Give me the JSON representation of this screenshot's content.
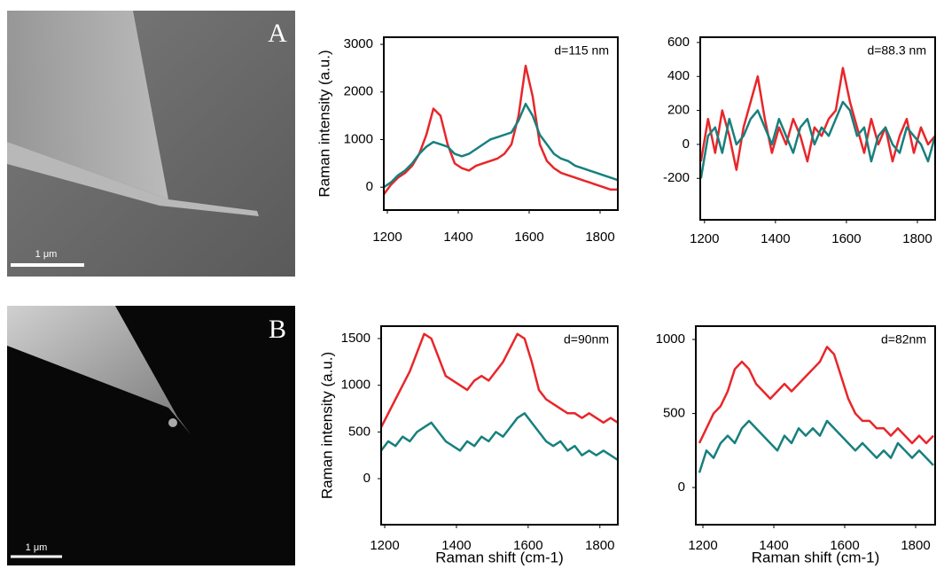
{
  "panels": [
    {
      "label": "A",
      "scale_bar": "1 μm"
    },
    {
      "label": "B",
      "scale_bar": "1 μm"
    }
  ],
  "chart_data": [
    {
      "type": "line",
      "annotation": "d=115 nm",
      "ylabel": "Raman intensity (a.u.)",
      "x": [
        1190,
        1210,
        1230,
        1250,
        1270,
        1290,
        1310,
        1330,
        1350,
        1370,
        1390,
        1410,
        1430,
        1450,
        1470,
        1490,
        1510,
        1530,
        1550,
        1570,
        1590,
        1610,
        1630,
        1650,
        1670,
        1690,
        1710,
        1730,
        1750,
        1770,
        1790,
        1810,
        1830,
        1850
      ],
      "series": [
        {
          "color": "#e8262a",
          "values": [
            -150,
            50,
            200,
            300,
            450,
            700,
            1100,
            1650,
            1500,
            900,
            500,
            400,
            350,
            450,
            500,
            550,
            600,
            700,
            900,
            1500,
            2550,
            1900,
            900,
            550,
            400,
            300,
            250,
            200,
            150,
            100,
            50,
            0,
            -50,
            -50
          ]
        },
        {
          "color": "#17807e",
          "values": [
            0,
            100,
            250,
            350,
            500,
            700,
            850,
            950,
            900,
            850,
            700,
            650,
            700,
            800,
            900,
            1000,
            1050,
            1100,
            1150,
            1400,
            1750,
            1500,
            1100,
            900,
            700,
            600,
            550,
            450,
            400,
            350,
            300,
            250,
            200,
            150
          ]
        }
      ],
      "xlim": [
        1190,
        1850
      ],
      "xticks": [
        1200,
        1400,
        1600,
        1800
      ],
      "ylim": [
        -480,
        3150
      ],
      "yticks": [
        0,
        1000,
        2000,
        3000
      ]
    },
    {
      "type": "line",
      "annotation": "d=88.3 nm",
      "x": [
        1190,
        1210,
        1230,
        1250,
        1270,
        1290,
        1310,
        1330,
        1350,
        1370,
        1390,
        1410,
        1430,
        1450,
        1470,
        1490,
        1510,
        1530,
        1550,
        1570,
        1590,
        1610,
        1630,
        1650,
        1670,
        1690,
        1710,
        1730,
        1750,
        1770,
        1790,
        1810,
        1830,
        1850
      ],
      "series": [
        {
          "color": "#e8262a",
          "values": [
            -100,
            150,
            -50,
            200,
            50,
            -150,
            100,
            250,
            400,
            150,
            -50,
            100,
            0,
            150,
            50,
            -100,
            100,
            50,
            150,
            200,
            450,
            250,
            100,
            -50,
            150,
            0,
            100,
            -100,
            50,
            150,
            -50,
            100,
            0,
            50
          ]
        },
        {
          "color": "#17807e",
          "values": [
            -200,
            50,
            100,
            -50,
            150,
            0,
            50,
            150,
            200,
            100,
            0,
            150,
            50,
            -50,
            100,
            150,
            0,
            100,
            50,
            150,
            250,
            200,
            50,
            100,
            -100,
            50,
            100,
            0,
            -50,
            100,
            50,
            0,
            -100,
            50
          ]
        }
      ],
      "xlim": [
        1188,
        1850
      ],
      "xticks": [
        1200,
        1400,
        1600,
        1800
      ],
      "ylim": [
        -444,
        631
      ],
      "yticks": [
        -200,
        0,
        200,
        400,
        600
      ]
    },
    {
      "type": "line",
      "annotation": "d=90nm",
      "ylabel": "Raman intensity (a.u.)",
      "xlabel": "Raman shift (cm-1)",
      "x": [
        1190,
        1210,
        1230,
        1250,
        1270,
        1290,
        1310,
        1330,
        1350,
        1370,
        1390,
        1410,
        1430,
        1450,
        1470,
        1490,
        1510,
        1530,
        1550,
        1570,
        1590,
        1610,
        1630,
        1650,
        1670,
        1690,
        1710,
        1730,
        1750,
        1770,
        1790,
        1810,
        1830,
        1850
      ],
      "series": [
        {
          "color": "#e8262a",
          "values": [
            550,
            700,
            850,
            1000,
            1150,
            1350,
            1550,
            1500,
            1300,
            1100,
            1050,
            1000,
            950,
            1050,
            1100,
            1050,
            1150,
            1250,
            1400,
            1550,
            1500,
            1250,
            950,
            850,
            800,
            750,
            700,
            700,
            650,
            700,
            650,
            600,
            650,
            600
          ]
        },
        {
          "color": "#17807e",
          "values": [
            300,
            400,
            350,
            450,
            400,
            500,
            550,
            600,
            500,
            400,
            350,
            300,
            400,
            350,
            450,
            400,
            500,
            450,
            550,
            650,
            700,
            600,
            500,
            400,
            350,
            400,
            300,
            350,
            250,
            300,
            250,
            300,
            250,
            200
          ]
        }
      ],
      "xlim": [
        1190,
        1850
      ],
      "xticks": [
        1200,
        1400,
        1600,
        1800
      ],
      "ylim": [
        -493,
        1633
      ],
      "yticks": [
        0,
        500,
        1000,
        1500
      ]
    },
    {
      "type": "line",
      "annotation": "d=82nm",
      "xlabel": "Raman shift (cm-1)",
      "x": [
        1190,
        1210,
        1230,
        1250,
        1270,
        1290,
        1310,
        1330,
        1350,
        1370,
        1390,
        1410,
        1430,
        1450,
        1470,
        1490,
        1510,
        1530,
        1550,
        1570,
        1590,
        1610,
        1630,
        1650,
        1670,
        1690,
        1710,
        1730,
        1750,
        1770,
        1790,
        1810,
        1830,
        1850
      ],
      "series": [
        {
          "color": "#e8262a",
          "values": [
            300,
            400,
            500,
            550,
            650,
            800,
            850,
            800,
            700,
            650,
            600,
            650,
            700,
            650,
            700,
            750,
            800,
            850,
            950,
            900,
            750,
            600,
            500,
            450,
            450,
            400,
            400,
            350,
            400,
            350,
            300,
            350,
            300,
            350
          ]
        },
        {
          "color": "#17807e",
          "values": [
            100,
            250,
            200,
            300,
            350,
            300,
            400,
            450,
            400,
            350,
            300,
            250,
            350,
            300,
            400,
            350,
            400,
            350,
            450,
            400,
            350,
            300,
            250,
            300,
            250,
            200,
            250,
            200,
            300,
            250,
            200,
            250,
            200,
            150
          ]
        }
      ],
      "xlim": [
        1180,
        1855
      ],
      "xticks": [
        1200,
        1400,
        1600,
        1800
      ],
      "ylim": [
        -251,
        1090
      ],
      "yticks": [
        0,
        500,
        1000
      ]
    }
  ]
}
